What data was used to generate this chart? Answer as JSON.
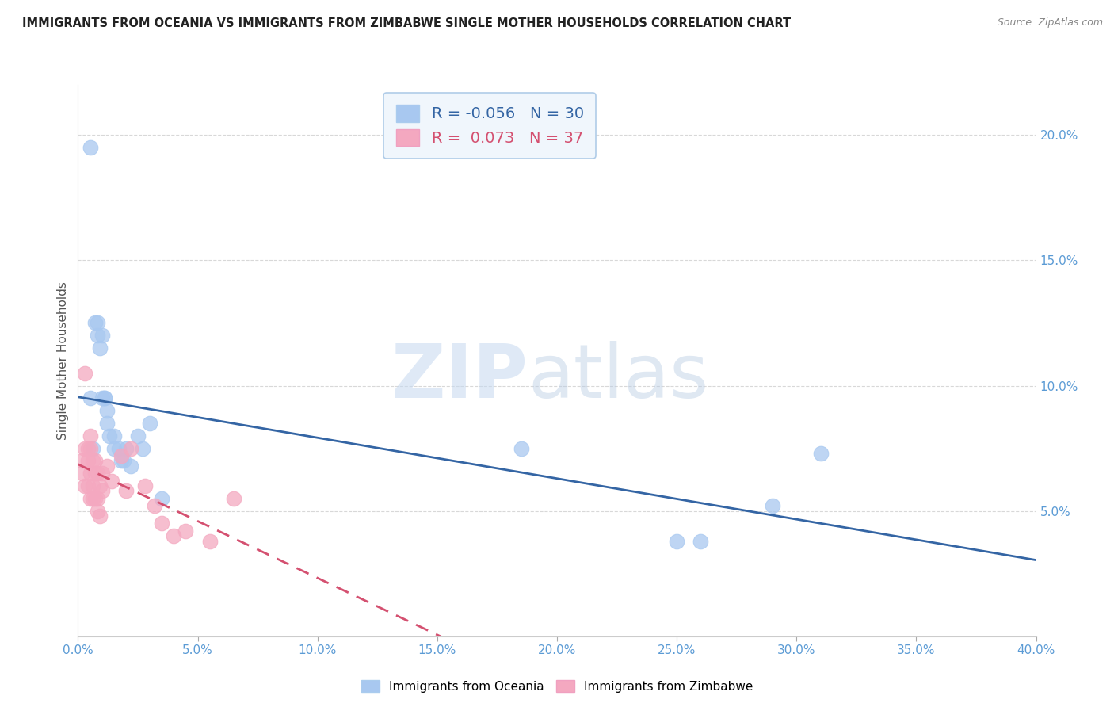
{
  "title": "IMMIGRANTS FROM OCEANIA VS IMMIGRANTS FROM ZIMBABWE SINGLE MOTHER HOUSEHOLDS CORRELATION CHART",
  "source": "Source: ZipAtlas.com",
  "ylabel": "Single Mother Households",
  "ylabel_right_ticks": [
    "20.0%",
    "15.0%",
    "10.0%",
    "5.0%"
  ],
  "ylabel_right_vals": [
    0.2,
    0.15,
    0.1,
    0.05
  ],
  "legend_oceania": {
    "R": "-0.056",
    "N": "30"
  },
  "legend_zimbabwe": {
    "R": "0.073",
    "N": "37"
  },
  "color_oceania": "#a8c8f0",
  "color_zimbabwe": "#f4a8c0",
  "color_oceania_line": "#3465a4",
  "color_zimbabwe_line": "#d45070",
  "xlim": [
    0.0,
    0.4
  ],
  "ylim": [
    0.0,
    0.22
  ],
  "oceania_x": [
    0.005,
    0.007,
    0.008,
    0.008,
    0.009,
    0.01,
    0.01,
    0.011,
    0.011,
    0.012,
    0.012,
    0.013,
    0.015,
    0.015,
    0.017,
    0.018,
    0.019,
    0.02,
    0.022,
    0.025,
    0.027,
    0.03,
    0.035,
    0.185,
    0.25,
    0.26,
    0.29,
    0.31,
    0.005,
    0.006
  ],
  "oceania_y": [
    0.195,
    0.125,
    0.125,
    0.12,
    0.115,
    0.12,
    0.095,
    0.095,
    0.095,
    0.09,
    0.085,
    0.08,
    0.08,
    0.075,
    0.075,
    0.07,
    0.07,
    0.075,
    0.068,
    0.08,
    0.075,
    0.085,
    0.055,
    0.075,
    0.038,
    0.038,
    0.052,
    0.073,
    0.095,
    0.075
  ],
  "zimbabwe_x": [
    0.002,
    0.002,
    0.003,
    0.003,
    0.003,
    0.004,
    0.004,
    0.004,
    0.005,
    0.005,
    0.005,
    0.005,
    0.006,
    0.006,
    0.006,
    0.007,
    0.007,
    0.007,
    0.008,
    0.008,
    0.008,
    0.009,
    0.009,
    0.01,
    0.01,
    0.012,
    0.014,
    0.018,
    0.02,
    0.022,
    0.028,
    0.032,
    0.035,
    0.04,
    0.045,
    0.055,
    0.065
  ],
  "zimbabwe_y": [
    0.07,
    0.065,
    0.105,
    0.075,
    0.06,
    0.075,
    0.07,
    0.06,
    0.08,
    0.075,
    0.065,
    0.055,
    0.07,
    0.06,
    0.055,
    0.07,
    0.065,
    0.055,
    0.065,
    0.055,
    0.05,
    0.06,
    0.048,
    0.065,
    0.058,
    0.068,
    0.062,
    0.072,
    0.058,
    0.075,
    0.06,
    0.052,
    0.045,
    0.04,
    0.042,
    0.038,
    0.055
  ],
  "background_color": "#ffffff",
  "grid_color": "#d8d8d8",
  "watermark_zip": "ZIP",
  "watermark_atlas": "atlas",
  "figsize": [
    14.06,
    8.92
  ],
  "dpi": 100
}
